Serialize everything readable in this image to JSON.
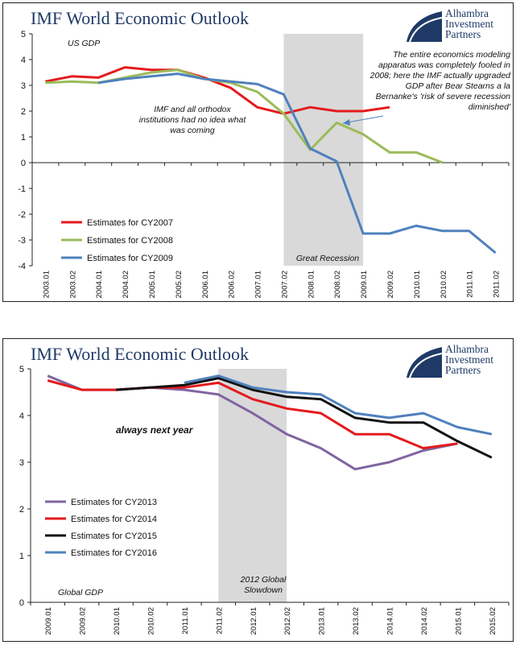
{
  "panels": [
    {
      "title": "IMF World Economic Outlook",
      "logo": {
        "lines": [
          "Alhambra",
          "Investment",
          "Partners"
        ]
      },
      "notes": {
        "region": "US GDP",
        "left": "IMF and all orthodox institutions had no idea what was coming",
        "right": "The entire economics modeling apparatus was completely fooled in 2008; here the IMF actually upgraded GDP after Bear Stearns a la Bernanke's 'risk of severe recession diminished'",
        "shade": "Great Recession"
      }
    },
    {
      "title": "IMF World Economic Outlook",
      "logo": {
        "lines": [
          "Alhambra",
          "Investment",
          "Partners"
        ]
      },
      "notes": {
        "region": "Global GDP",
        "center": "always next year",
        "shade": "2012 Global Slowdown"
      }
    }
  ],
  "chart_data": [
    {
      "type": "line",
      "title": "IMF World Economic Outlook",
      "subtitle": "US GDP",
      "categories": [
        "2003.01",
        "2003.02",
        "2004.01",
        "2004.02",
        "2005.01",
        "2005.02",
        "2006.01",
        "2006.02",
        "2007.01",
        "2007.02",
        "2008.01",
        "2008.02",
        "2009.01",
        "2009.02",
        "2010.01",
        "2010.02",
        "2011.01",
        "2011.02"
      ],
      "ylim": [
        -4,
        5
      ],
      "yticks": [
        -4,
        -3,
        -2,
        -1,
        0,
        1,
        2,
        3,
        4,
        5
      ],
      "shaded": {
        "from": "2007.02",
        "to": "2009.01",
        "label": "Great Recession"
      },
      "legend_position": "bottom-left",
      "series": [
        {
          "name": "Estimates for CY2007",
          "color": "#e41a1c",
          "values": [
            3.15,
            3.35,
            3.3,
            3.7,
            3.6,
            3.6,
            3.3,
            2.9,
            2.15,
            1.9,
            2.15,
            2.0,
            2.0,
            2.15,
            null,
            null,
            null,
            null
          ]
        },
        {
          "name": "Estimates for CY2008",
          "color": "#9bbb59",
          "values": [
            3.1,
            3.15,
            3.1,
            3.3,
            3.5,
            3.6,
            3.25,
            3.1,
            2.75,
            1.9,
            0.5,
            1.55,
            1.1,
            0.4,
            0.4,
            0.0,
            null,
            null
          ]
        },
        {
          "name": "Estimates for CY2009",
          "color": "#4f81bd",
          "values": [
            null,
            null,
            3.1,
            3.25,
            3.35,
            3.45,
            3.25,
            3.15,
            3.05,
            2.65,
            0.55,
            0.05,
            -2.75,
            -2.75,
            -2.45,
            -2.65,
            -2.65,
            -3.5
          ]
        }
      ]
    },
    {
      "type": "line",
      "title": "IMF World Economic Outlook",
      "subtitle": "Global GDP",
      "categories": [
        "2009.01",
        "2009.02",
        "2010.01",
        "2010.02",
        "2011.01",
        "2011.02",
        "2012.01",
        "2012.02",
        "2013.01",
        "2013.02",
        "2014.01",
        "2014.02",
        "2015.01",
        "2015.02"
      ],
      "ylim": [
        0,
        5
      ],
      "yticks": [
        0,
        1,
        2,
        3,
        4,
        5
      ],
      "shaded": {
        "from": "2011.02",
        "to": "2012.02",
        "label": "2012 Global Slowdown"
      },
      "legend_position": "bottom-left",
      "series": [
        {
          "name": "Estimates for CY2013",
          "color": "#8064a2",
          "values": [
            4.85,
            4.55,
            4.55,
            4.6,
            4.55,
            4.45,
            4.05,
            3.6,
            3.3,
            2.85,
            3.0,
            3.25,
            3.4,
            null
          ]
        },
        {
          "name": "Estimates for CY2014",
          "color": "#e41a1c",
          "values": [
            4.75,
            4.55,
            4.55,
            4.6,
            4.6,
            4.7,
            4.35,
            4.15,
            4.05,
            3.6,
            3.6,
            3.3,
            3.4,
            null
          ]
        },
        {
          "name": "Estimates for CY2015",
          "color": "#111111",
          "values": [
            null,
            null,
            4.55,
            4.6,
            4.65,
            4.8,
            4.55,
            4.4,
            4.35,
            3.95,
            3.85,
            3.85,
            3.45,
            3.1
          ]
        },
        {
          "name": "Estimates for CY2016",
          "color": "#4f81bd",
          "values": [
            null,
            null,
            null,
            null,
            4.7,
            4.85,
            4.6,
            4.5,
            4.45,
            4.05,
            3.95,
            4.05,
            3.75,
            3.6
          ]
        }
      ]
    }
  ]
}
